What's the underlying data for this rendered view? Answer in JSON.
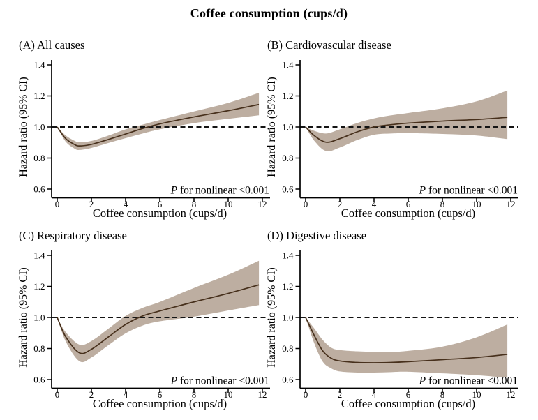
{
  "title": "Coffee consumption (cups/d)",
  "annotation": {
    "p": "P",
    "rest": " for nonlinear <0.001"
  },
  "colors": {
    "band": "#b9aa9c",
    "line": "#47301c",
    "axis": "#000000",
    "reference_dash": "#141414",
    "background": "#ffffff"
  },
  "chart_data": [
    {
      "type": "line",
      "panel": "A",
      "title": "(A) All causes",
      "xlabel": "Coffee consumption (cups/d)",
      "ylabel": "Hazard ratio (95% CI)",
      "annotation": "P for nonlinear <0.001",
      "xlim": [
        0,
        12
      ],
      "ylim": [
        0.6,
        1.4
      ],
      "x_ticks": [
        0,
        2,
        4,
        6,
        8,
        10,
        12
      ],
      "x_tick_labels": [
        "0",
        "2",
        "4",
        "6",
        "8",
        "10",
        "12"
      ],
      "y_ticks": [
        0.6,
        0.8,
        1.0,
        1.2,
        1.4
      ],
      "y_tick_labels": [
        "0.6",
        "0.8",
        "1.0",
        "1.2",
        "1.4"
      ],
      "reference_line": 1.0,
      "grid": false,
      "x": [
        0,
        0.5,
        1,
        1.3,
        2,
        3,
        4,
        5,
        6,
        8,
        10,
        11.8
      ],
      "series": [
        {
          "name": "hazard_ratio",
          "values": [
            1.0,
            0.925,
            0.888,
            0.878,
            0.888,
            0.92,
            0.955,
            0.99,
            1.02,
            1.065,
            1.105,
            1.145
          ]
        },
        {
          "name": "ci_lower",
          "values": [
            1.0,
            0.905,
            0.862,
            0.852,
            0.865,
            0.897,
            0.928,
            0.958,
            0.985,
            1.025,
            1.052,
            1.075
          ]
        },
        {
          "name": "ci_upper",
          "values": [
            1.0,
            0.945,
            0.912,
            0.902,
            0.91,
            0.945,
            0.985,
            1.015,
            1.045,
            1.1,
            1.155,
            1.22
          ]
        }
      ]
    },
    {
      "type": "line",
      "panel": "B",
      "title": "(B) Cardiovascular disease",
      "xlabel": "Coffee consumption (cups/d)",
      "ylabel": "Hazard ratio (95% CI)",
      "annotation": "P for nonlinear <0.001",
      "xlim": [
        0,
        12
      ],
      "ylim": [
        0.6,
        1.4
      ],
      "x_ticks": [
        0,
        2,
        4,
        6,
        8,
        10,
        12
      ],
      "x_tick_labels": [
        "0",
        "2",
        "4",
        "6",
        "8",
        "10",
        "12"
      ],
      "y_ticks": [
        0.6,
        0.8,
        1.0,
        1.2,
        1.4
      ],
      "y_tick_labels": [
        "0.6",
        "0.8",
        "1.0",
        "1.2",
        "1.4"
      ],
      "reference_line": 1.0,
      "grid": false,
      "x": [
        0,
        0.5,
        1.2,
        2,
        3,
        4,
        5,
        6,
        8,
        10,
        11.8
      ],
      "series": [
        {
          "name": "hazard_ratio",
          "values": [
            1.0,
            0.945,
            0.902,
            0.925,
            0.968,
            1.0,
            1.015,
            1.025,
            1.038,
            1.048,
            1.062
          ]
        },
        {
          "name": "ci_lower",
          "values": [
            1.0,
            0.912,
            0.845,
            0.868,
            0.915,
            0.95,
            0.958,
            0.96,
            0.955,
            0.945,
            0.922
          ]
        },
        {
          "name": "ci_upper",
          "values": [
            1.0,
            0.975,
            0.958,
            0.985,
            1.025,
            1.055,
            1.075,
            1.09,
            1.12,
            1.165,
            1.235
          ]
        }
      ]
    },
    {
      "type": "line",
      "panel": "C",
      "title": "(C) Respiratory disease",
      "xlabel": "Coffee consumption (cups/d)",
      "ylabel": "Hazard ratio (95% CI)",
      "annotation": "P for nonlinear <0.001",
      "xlim": [
        0,
        12
      ],
      "ylim": [
        0.6,
        1.4
      ],
      "x_ticks": [
        0,
        2,
        4,
        6,
        8,
        10,
        12
      ],
      "x_tick_labels": [
        "0",
        "2",
        "4",
        "6",
        "8",
        "10",
        "12"
      ],
      "y_ticks": [
        0.6,
        0.8,
        1.0,
        1.2,
        1.4
      ],
      "y_tick_labels": [
        "0.6",
        "0.8",
        "1.0",
        "1.2",
        "1.4"
      ],
      "reference_line": 1.0,
      "grid": false,
      "x": [
        0,
        0.5,
        1.3,
        2,
        3,
        4,
        5,
        6,
        8,
        10,
        11.8
      ],
      "series": [
        {
          "name": "hazard_ratio",
          "values": [
            1.0,
            0.875,
            0.772,
            0.795,
            0.875,
            0.955,
            1.01,
            1.042,
            1.1,
            1.155,
            1.21
          ]
        },
        {
          "name": "ci_lower",
          "values": [
            1.0,
            0.845,
            0.718,
            0.742,
            0.822,
            0.898,
            0.948,
            0.975,
            1.005,
            1.045,
            1.08
          ]
        },
        {
          "name": "ci_upper",
          "values": [
            1.0,
            0.905,
            0.825,
            0.848,
            0.928,
            1.01,
            1.062,
            1.1,
            1.19,
            1.275,
            1.365
          ]
        }
      ]
    },
    {
      "type": "line",
      "panel": "D",
      "title": "(D) Digestive disease",
      "xlabel": "Coffee consumption (cups/d)",
      "ylabel": "Hazard ratio (95% CI)",
      "annotation": "P for nonlinear <0.001",
      "xlim": [
        0,
        12
      ],
      "ylim": [
        0.6,
        1.4
      ],
      "x_ticks": [
        0,
        2,
        4,
        6,
        8,
        10,
        12
      ],
      "x_tick_labels": [
        "0",
        "2",
        "4",
        "6",
        "8",
        "10",
        "12"
      ],
      "y_ticks": [
        0.6,
        0.8,
        1.0,
        1.2,
        1.4
      ],
      "y_tick_labels": [
        "0.6",
        "0.8",
        "1.0",
        "1.2",
        "1.4"
      ],
      "reference_line": 1.0,
      "grid": false,
      "x": [
        0,
        0.5,
        1,
        1.5,
        2,
        3,
        4,
        5,
        6,
        8,
        10,
        11.8
      ],
      "series": [
        {
          "name": "hazard_ratio",
          "values": [
            1.0,
            0.885,
            0.785,
            0.737,
            0.72,
            0.71,
            0.708,
            0.71,
            0.715,
            0.728,
            0.742,
            0.762
          ]
        },
        {
          "name": "ci_lower",
          "values": [
            1.0,
            0.835,
            0.715,
            0.672,
            0.652,
            0.645,
            0.645,
            0.648,
            0.65,
            0.64,
            0.628,
            0.612
          ]
        },
        {
          "name": "ci_upper",
          "values": [
            1.0,
            0.93,
            0.855,
            0.805,
            0.79,
            0.782,
            0.778,
            0.778,
            0.785,
            0.812,
            0.872,
            0.955
          ]
        }
      ]
    }
  ]
}
